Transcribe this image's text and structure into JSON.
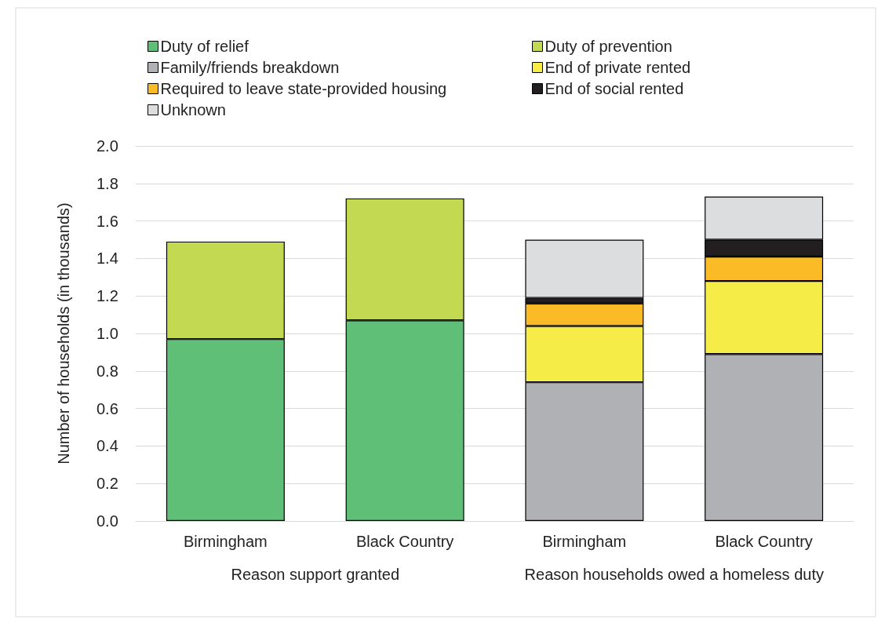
{
  "chart_data": {
    "type": "bar",
    "stacked": true,
    "ylabel": "Number of households (in thousands)",
    "categories": [
      "Birmingham",
      "Black Country",
      "Birmingham",
      "Black Country"
    ],
    "series": [
      {
        "name": "Duty of relief",
        "color": "#5fbf77",
        "values": [
          0.97,
          1.07,
          null,
          null
        ]
      },
      {
        "name": "Duty of prevention",
        "color": "#c3d952",
        "values": [
          0.52,
          0.65,
          null,
          null
        ]
      },
      {
        "name": "Family/friends breakdown",
        "color": "#b0b1b5",
        "values": [
          null,
          null,
          0.74,
          0.89
        ]
      },
      {
        "name": "End of private rented",
        "color": "#f5ec48",
        "values": [
          null,
          null,
          0.3,
          0.39
        ]
      },
      {
        "name": "Required to leave state-provided housing",
        "color": "#fbbb27",
        "values": [
          null,
          null,
          0.12,
          0.13
        ]
      },
      {
        "name": "End of social rented",
        "color": "#231f20",
        "values": [
          null,
          null,
          0.03,
          0.09
        ]
      },
      {
        "name": "Unknown",
        "color": "#dcdddf",
        "values": [
          null,
          null,
          0.31,
          0.23
        ]
      }
    ],
    "ylim": [
      0,
      2
    ],
    "yticks": [
      {
        "value": 0,
        "label": "0.0"
      },
      0.2,
      0.4,
      0.6,
      0.8,
      {
        "value": 1,
        "label": "1.0"
      },
      1.2,
      1.4,
      1.6,
      1.8,
      {
        "value": 2,
        "label": "2.0"
      }
    ],
    "grid": "y",
    "legend": "top",
    "annotations": [
      "Reason support granted",
      "Reason households owed a homeless duty"
    ]
  }
}
